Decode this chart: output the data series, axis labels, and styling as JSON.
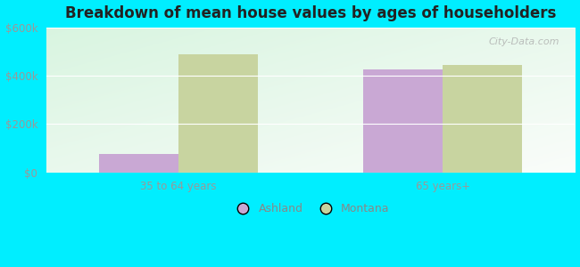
{
  "title": "Breakdown of mean house values by ages of householders",
  "categories": [
    "35 to 64 years",
    "65 years+"
  ],
  "ashland_values": [
    75000,
    425000
  ],
  "montana_values": [
    490000,
    445000
  ],
  "ashland_color": "#c9a8d4",
  "montana_color": "#c8d4a0",
  "background_color": "#00eeff",
  "ylim": [
    0,
    600000
  ],
  "yticks": [
    0,
    200000,
    400000,
    600000
  ],
  "ytick_labels": [
    "$0",
    "$200k",
    "$400k",
    "$600k"
  ],
  "bar_width": 0.3,
  "legend_labels": [
    "Ashland",
    "Montana"
  ],
  "watermark": "City-Data.com"
}
